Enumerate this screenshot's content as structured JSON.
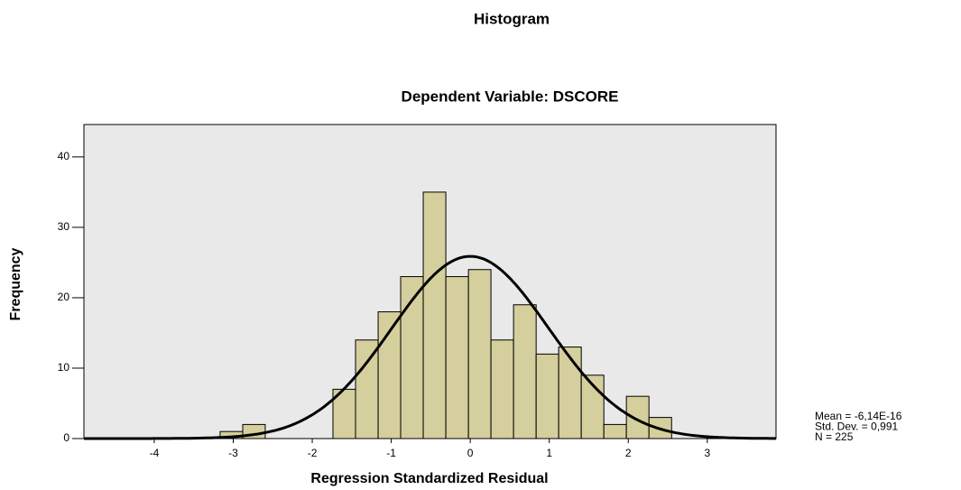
{
  "chart_data": {
    "type": "histogram",
    "title": "Histogram",
    "subtitle": "Dependent Variable: DSCORE",
    "x_label": "Regression Standardized Residual",
    "y_label": "Frequency",
    "bins": [
      -3.166,
      -2.88,
      -2.595,
      -2.309,
      -2.023,
      -1.738,
      -1.452,
      -1.166,
      -0.881,
      -0.595,
      -0.309,
      -0.023,
      0.262,
      0.548,
      0.834,
      1.119,
      1.405,
      1.691,
      1.976,
      2.262,
      2.548
    ],
    "values": [
      1,
      2,
      0,
      0,
      0,
      7,
      14,
      18,
      23,
      35,
      23,
      24,
      14,
      19,
      12,
      13,
      9,
      2,
      6,
      3
    ],
    "color": "#d4cf9c",
    "background": "#e9e9e9",
    "xlim": [
      -4.89,
      3.87
    ],
    "xticks": [
      -4,
      -3,
      -2,
      -1,
      0,
      1,
      2,
      3
    ],
    "ylim": [
      0,
      44.6
    ],
    "yticks": [
      0,
      10,
      20,
      30,
      40
    ],
    "normal_curve": true,
    "stats": [
      {
        "label": "Mean = -6,14E-16",
        "value": -6.14e-16
      },
      {
        "label": "Std. Dev. = 0,991",
        "value": 0.991
      },
      {
        "label": "N = 225",
        "value": 225
      }
    ]
  }
}
